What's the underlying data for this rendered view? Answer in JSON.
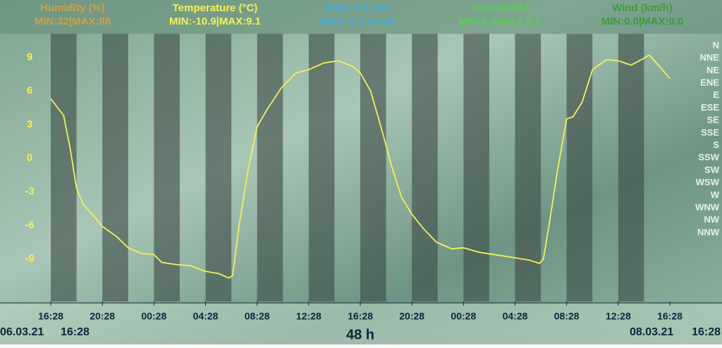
{
  "header": [
    {
      "name": "Humidity (%)",
      "range": "MIN:32|MAX:88",
      "color": "#c9a24e"
    },
    {
      "name": "Temperature (°C)",
      "range": "MIN:-10.9|MAX:9.1",
      "color": "#f5f05a"
    },
    {
      "name": "Rain: 0.0 mm",
      "range": "MAX: 0.0 mm/h",
      "color": "#4aa8d8"
    },
    {
      "name": "Gust (km/h)",
      "range": "MIN:0.0|MAX:0.0",
      "color": "#5ecb5e"
    },
    {
      "name": "Wind (km/h)",
      "range": "MIN:0.0|MAX:0.0",
      "color": "#3d9a3d"
    }
  ],
  "chart_data": {
    "type": "line",
    "x": [
      0,
      1,
      1.5,
      2,
      2.5,
      3.2,
      4,
      5.1,
      6,
      7,
      8,
      8.6,
      9.7,
      10.8,
      12,
      13,
      13.8,
      14.1,
      14.6,
      15.3,
      16,
      16.8,
      17.9,
      19,
      20,
      21.2,
      22.3,
      23.4,
      24,
      24.8,
      25.6,
      26.4,
      27.2,
      28,
      28.9,
      29.9,
      31.1,
      32,
      33.2,
      34.3,
      36,
      37.1,
      37.9,
      38.2,
      38.7,
      39.3,
      40,
      40.5,
      41.2,
      42,
      43.1,
      44,
      45,
      45.8,
      46.4,
      47.2,
      48
    ],
    "series": [
      {
        "name": "Temperature (°C)",
        "color": "#f5f05a",
        "values": [
          5.3,
          3.8,
          0.9,
          -2.7,
          -4.1,
          -5.0,
          -6.1,
          -7.0,
          -8.0,
          -8.5,
          -8.6,
          -9.3,
          -9.5,
          -9.6,
          -10.1,
          -10.3,
          -10.7,
          -10.5,
          -6,
          -1,
          2.8,
          4.4,
          6.3,
          7.6,
          7.9,
          8.5,
          8.7,
          8.2,
          7.6,
          6.0,
          2.8,
          -0.6,
          -3.5,
          -5.0,
          -6.3,
          -7.5,
          -8.1,
          -8.0,
          -8.4,
          -8.6,
          -8.9,
          -9.1,
          -9.4,
          -9.0,
          -5.5,
          -1,
          3.5,
          3.7,
          5.0,
          7.9,
          8.8,
          8.7,
          8.3,
          8.8,
          9.2,
          8.2,
          7.1
        ]
      }
    ],
    "xlim": [
      0,
      48
    ],
    "xticks": [
      {
        "value": 0,
        "label": "16:28"
      },
      {
        "value": 4,
        "label": "20:28"
      },
      {
        "value": 8,
        "label": "00:28"
      },
      {
        "value": 12,
        "label": "04:28"
      },
      {
        "value": 16,
        "label": "08:28"
      },
      {
        "value": 20,
        "label": "12:28"
      },
      {
        "value": 24,
        "label": "16:28"
      },
      {
        "value": 28,
        "label": "20:28"
      },
      {
        "value": 32,
        "label": "00:28"
      },
      {
        "value": 36,
        "label": "04:28"
      },
      {
        "value": 40,
        "label": "08:28"
      },
      {
        "value": 44,
        "label": "12:28"
      },
      {
        "value": 48,
        "label": "16:28"
      }
    ],
    "ylim": [
      -12.8,
      11.1
    ],
    "yticks": [
      -9,
      -6,
      -3,
      0,
      3,
      6,
      9
    ],
    "wind_directions": [
      "N",
      "NNE",
      "NE",
      "ENE",
      "E",
      "ESE",
      "SE",
      "SSE",
      "S",
      "SSW",
      "SW",
      "WSW",
      "W",
      "WNW",
      "NW",
      "NNW"
    ]
  },
  "footer": {
    "start_date": "06.03.21",
    "start_time": "16:28",
    "span": "48 h",
    "end_date": "08.03.21",
    "end_time": "16:28"
  }
}
